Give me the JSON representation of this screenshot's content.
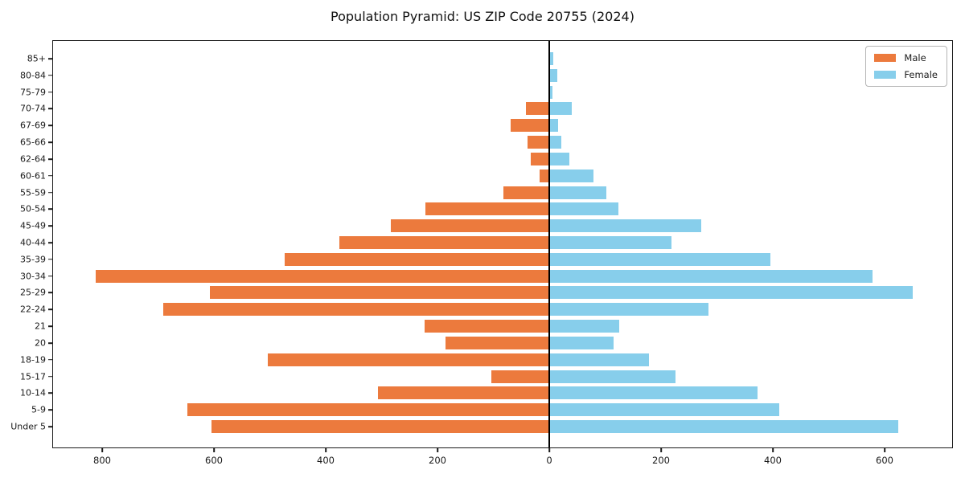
{
  "title": "Population Pyramid: US ZIP Code 20755 (2024)",
  "legend": {
    "male_label": "Male",
    "female_label": "Female"
  },
  "colors": {
    "male": "#ec7a3d",
    "female": "#87ceeb",
    "axis": "#1a1a1a",
    "zero_line": "#000000"
  },
  "chart_data": {
    "type": "bar",
    "orientation": "horizontal-population-pyramid",
    "title": "Population Pyramid: US ZIP Code 20755 (2024)",
    "categories_top_to_bottom": [
      "85+",
      "80-84",
      "75-79",
      "70-74",
      "67-69",
      "65-66",
      "62-64",
      "60-61",
      "55-59",
      "50-54",
      "45-49",
      "40-44",
      "35-39",
      "30-34",
      "25-29",
      "22-24",
      "21",
      "20",
      "18-19",
      "15-17",
      "10-14",
      "5-9",
      "Under 5"
    ],
    "series": [
      {
        "name": "Male",
        "side": "left",
        "values": [
          0,
          0,
          0,
          42,
          69,
          39,
          33,
          17,
          82,
          221,
          283,
          375,
          474,
          812,
          607,
          690,
          223,
          185,
          503,
          103,
          306,
          648,
          605
        ]
      },
      {
        "name": "Female",
        "side": "right",
        "values": [
          7,
          14,
          6,
          40,
          16,
          22,
          36,
          79,
          102,
          124,
          272,
          219,
          395,
          579,
          650,
          285,
          125,
          115,
          178,
          226,
          373,
          411,
          624
        ]
      }
    ],
    "x_tick_values": [
      -800,
      -600,
      -400,
      -200,
      0,
      200,
      400,
      600
    ],
    "x_tick_labels": [
      "800",
      "600",
      "400",
      "200",
      "0",
      "200",
      "400",
      "600"
    ],
    "xlim": [
      -888,
      724
    ],
    "grid": false,
    "zero_axis_line": true,
    "legend_position": "upper right"
  }
}
